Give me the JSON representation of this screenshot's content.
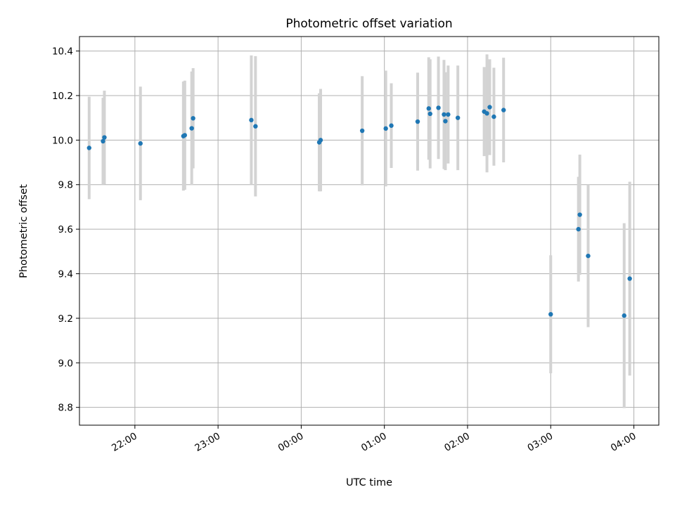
{
  "chart_data": {
    "type": "scatter",
    "title": "Photometric offset variation",
    "xlabel": "UTC time",
    "ylabel": "Photometric offset",
    "x_axis": "time",
    "xlim": [
      "21:20",
      "04:18"
    ],
    "ylim": [
      8.72,
      10.465
    ],
    "x_ticks": [
      "22:00",
      "23:00",
      "00:00",
      "01:00",
      "02:00",
      "03:00",
      "04:00"
    ],
    "y_ticks": [
      "8.8",
      "9.0",
      "9.2",
      "9.4",
      "9.6",
      "9.8",
      "10.0",
      "10.2",
      "10.4"
    ],
    "grid": true,
    "marker_color": "#1f77b4",
    "errorbar_color": "#d3d3d3",
    "points": [
      {
        "x": "21:27",
        "y": 9.965,
        "yerr": 0.23
      },
      {
        "x": "21:37",
        "y": 9.995,
        "yerr": 0.195
      },
      {
        "x": "21:38",
        "y": 10.012,
        "yerr": 0.21
      },
      {
        "x": "22:04",
        "y": 9.985,
        "yerr": 0.255
      },
      {
        "x": "22:35",
        "y": 10.018,
        "yerr": 0.245
      },
      {
        "x": "22:36",
        "y": 10.022,
        "yerr": 0.245
      },
      {
        "x": "22:41",
        "y": 10.053,
        "yerr": 0.255
      },
      {
        "x": "22:42",
        "y": 10.098,
        "yerr": 0.225
      },
      {
        "x": "23:24",
        "y": 10.09,
        "yerr": 0.29
      },
      {
        "x": "23:27",
        "y": 10.062,
        "yerr": 0.315
      },
      {
        "x": "00:13",
        "y": 9.99,
        "yerr": 0.22
      },
      {
        "x": "00:14",
        "y": 10.0,
        "yerr": 0.23
      },
      {
        "x": "00:44",
        "y": 10.042,
        "yerr": 0.245
      },
      {
        "x": "01:01",
        "y": 10.052,
        "yerr": 0.26
      },
      {
        "x": "01:05",
        "y": 10.065,
        "yerr": 0.19
      },
      {
        "x": "01:24",
        "y": 10.083,
        "yerr": 0.22
      },
      {
        "x": "01:32",
        "y": 10.142,
        "yerr": 0.23
      },
      {
        "x": "01:33",
        "y": 10.118,
        "yerr": 0.245
      },
      {
        "x": "01:39",
        "y": 10.145,
        "yerr": 0.23
      },
      {
        "x": "01:43",
        "y": 10.115,
        "yerr": 0.245
      },
      {
        "x": "01:44",
        "y": 10.085,
        "yerr": 0.22
      },
      {
        "x": "01:46",
        "y": 10.115,
        "yerr": 0.22
      },
      {
        "x": "01:53",
        "y": 10.1,
        "yerr": 0.235
      },
      {
        "x": "02:12",
        "y": 10.128,
        "yerr": 0.2
      },
      {
        "x": "02:14",
        "y": 10.12,
        "yerr": 0.265
      },
      {
        "x": "02:16",
        "y": 10.148,
        "yerr": 0.215
      },
      {
        "x": "02:19",
        "y": 10.105,
        "yerr": 0.22
      },
      {
        "x": "02:26",
        "y": 10.135,
        "yerr": 0.235
      },
      {
        "x": "03:00",
        "y": 9.218,
        "yerr": 0.265
      },
      {
        "x": "03:20",
        "y": 9.6,
        "yerr": 0.235
      },
      {
        "x": "03:21",
        "y": 9.665,
        "yerr": 0.27
      },
      {
        "x": "03:27",
        "y": 9.48,
        "yerr": 0.32
      },
      {
        "x": "03:53",
        "y": 9.212,
        "yerr": 0.415
      },
      {
        "x": "03:57",
        "y": 9.378,
        "yerr": 0.435
      }
    ]
  }
}
